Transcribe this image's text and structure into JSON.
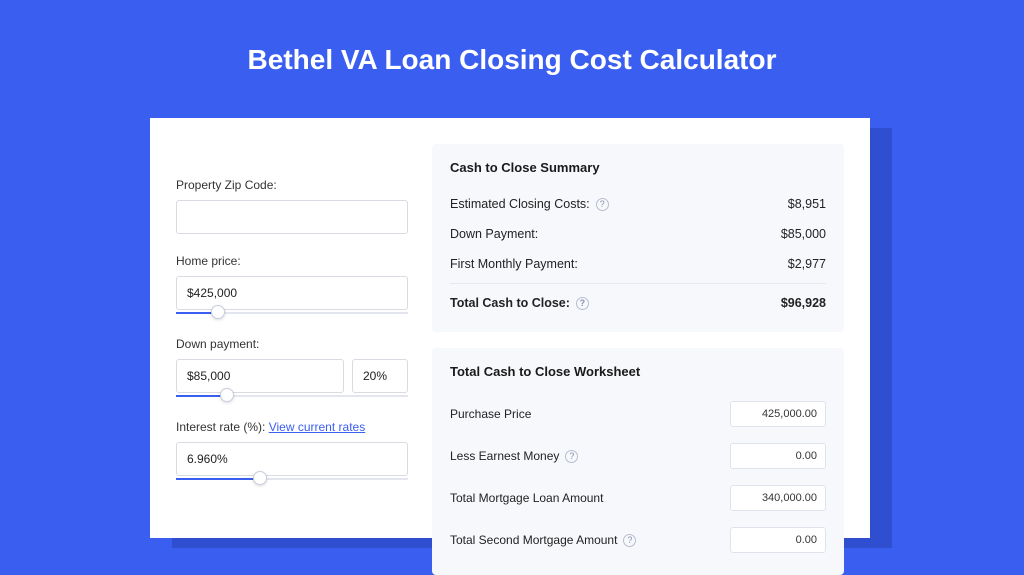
{
  "colors": {
    "page_bg": "#3a5ef0",
    "card_bg": "#ffffff",
    "card_shadow": "#2f4fd0",
    "panel_bg": "#f7f8fc",
    "accent": "#3a5ef0",
    "text": "#222222",
    "muted_border": "#d9dbe3"
  },
  "title": "Bethel VA Loan Closing Cost Calculator",
  "form": {
    "zip": {
      "label": "Property Zip Code:",
      "value": ""
    },
    "home_price": {
      "label": "Home price:",
      "value": "$425,000",
      "slider_pct": 18
    },
    "down_payment": {
      "label": "Down payment:",
      "value": "$85,000",
      "pct_value": "20%",
      "slider_pct": 22
    },
    "interest_rate": {
      "label": "Interest rate (%):",
      "link_text": "View current rates",
      "value": "6.960%",
      "slider_pct": 36
    }
  },
  "summary": {
    "title": "Cash to Close Summary",
    "rows": [
      {
        "label": "Estimated Closing Costs:",
        "help": true,
        "value": "$8,951"
      },
      {
        "label": "Down Payment:",
        "help": false,
        "value": "$85,000"
      },
      {
        "label": "First Monthly Payment:",
        "help": false,
        "value": "$2,977"
      }
    ],
    "total": {
      "label": "Total Cash to Close:",
      "help": true,
      "value": "$96,928"
    }
  },
  "worksheet": {
    "title": "Total Cash to Close Worksheet",
    "rows": [
      {
        "label": "Purchase Price",
        "help": false,
        "value": "425,000.00"
      },
      {
        "label": "Less Earnest Money",
        "help": true,
        "value": "0.00"
      },
      {
        "label": "Total Mortgage Loan Amount",
        "help": false,
        "value": "340,000.00"
      },
      {
        "label": "Total Second Mortgage Amount",
        "help": true,
        "value": "0.00"
      }
    ]
  }
}
